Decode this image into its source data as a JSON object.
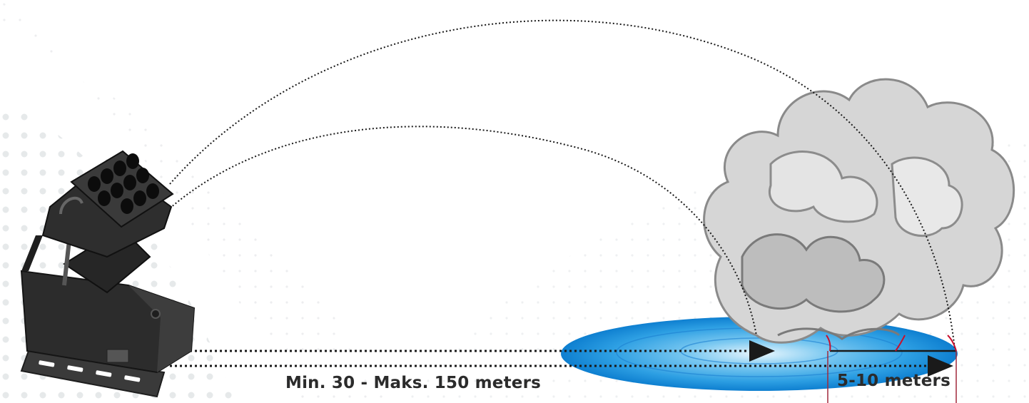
{
  "labels": {
    "range": "Min. 30 - Maks. 150 meters",
    "spread": "5-10 meters"
  },
  "colors": {
    "zone_outer": "#3aa8e6",
    "zone_inner": "#0e73c9",
    "trajectory": "#1a1a1a",
    "marker": "#c8102e",
    "smoke": "#9a9a9a",
    "launcher": "#2a2a2a",
    "label_text": "#2b2b2b"
  },
  "icons": {
    "launcher": "multi-barrel-launcher",
    "smoke": "smoke-cloud"
  }
}
